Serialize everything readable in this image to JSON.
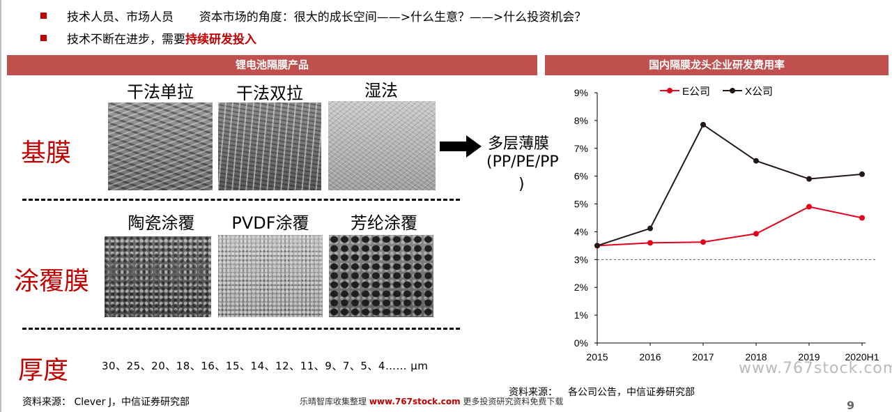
{
  "bullets": [
    {
      "text_a": "技术人员、市场人员",
      "text_b": "资本市场的角度：很大的成长空间——>什么生意？——>什么投资机会？"
    },
    {
      "text": "技术不断在进步，需要",
      "highlight": "持续研发投入"
    }
  ],
  "left_panel": {
    "header": "锂电池隔膜产品",
    "columns_top": [
      "干法单拉",
      "干法双拉",
      "湿法"
    ],
    "columns_bottom": [
      "陶瓷涂覆",
      "PVDF涂覆",
      "芳纶涂覆"
    ],
    "row_labels": [
      "基膜",
      "涂覆膜",
      "厚度"
    ],
    "multilayer": [
      "多层薄膜",
      "(PP/PE/PP",
      ")"
    ],
    "thickness": "30、25、20、18、16、15、14、12、11、9、7、5、4…… μm",
    "source": "资料来源： Clever J，中信证券研究部"
  },
  "right_panel": {
    "header": "国内隔膜龙头企业研发费用率",
    "source_prefix": "资料来源：",
    "source": "各公司公告，中信证券研究部"
  },
  "chart_data": {
    "type": "line",
    "title": "国内隔膜龙头企业研发费用率",
    "categories": [
      "2015",
      "2016",
      "2017",
      "2018",
      "2019",
      "2020H1"
    ],
    "series": [
      {
        "name": "E公司",
        "color": "#e3001b",
        "values": [
          3.5,
          3.6,
          3.63,
          3.93,
          4.9,
          4.5
        ]
      },
      {
        "name": "X公司",
        "color": "#231815",
        "values": [
          3.5,
          4.12,
          7.85,
          6.55,
          5.9,
          6.07
        ]
      }
    ],
    "y_ticks": [
      "0%",
      "1%",
      "2%",
      "3%",
      "4%",
      "5%",
      "6%",
      "7%",
      "8%",
      "9%"
    ],
    "ylim": [
      0,
      9
    ],
    "reference_line": 3,
    "legend_position": "top",
    "grid": false
  },
  "footer": {
    "text": "乐晴智库收集整理",
    "site": "www.767stock.com",
    "text2": "更多投资研究资料免费下载"
  },
  "page_number": "9",
  "watermark": "www.767stock.com"
}
